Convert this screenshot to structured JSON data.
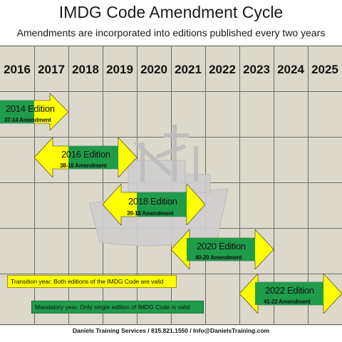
{
  "header": {
    "title": "IMDG Code Amendment Cycle",
    "subtitle": "Amendments are incorporated into editions published every two years"
  },
  "years": [
    "2016",
    "2017",
    "2018",
    "2019",
    "2020",
    "2021",
    "2022",
    "2023",
    "2024",
    "2025"
  ],
  "editions": [
    {
      "title": "2014 Edition",
      "amendment": "37-14 Amendment"
    },
    {
      "title": "2016 Edition",
      "amendment": "38-16 Amendment"
    },
    {
      "title": "2018 Edition",
      "amendment": "39-18 Amendment"
    },
    {
      "title": "2020 Edition",
      "amendment": "40-20 Amendment"
    },
    {
      "title": "2022 Edition",
      "amendment": "41-22 Amendment"
    }
  ],
  "legend": {
    "transition": "Transition year.  Both editions of the IMDG Code are valid",
    "mandatory": "Mandatory year.  Only single edition of IMDG Code is valid"
  },
  "footer": "Daniels Training Services / 815.821.1550 / Info@DanielsTraining.com",
  "colors": {
    "transition": "#ffff00",
    "mandatory": "#1e9c4a",
    "grid": "#dcd8cb"
  }
}
